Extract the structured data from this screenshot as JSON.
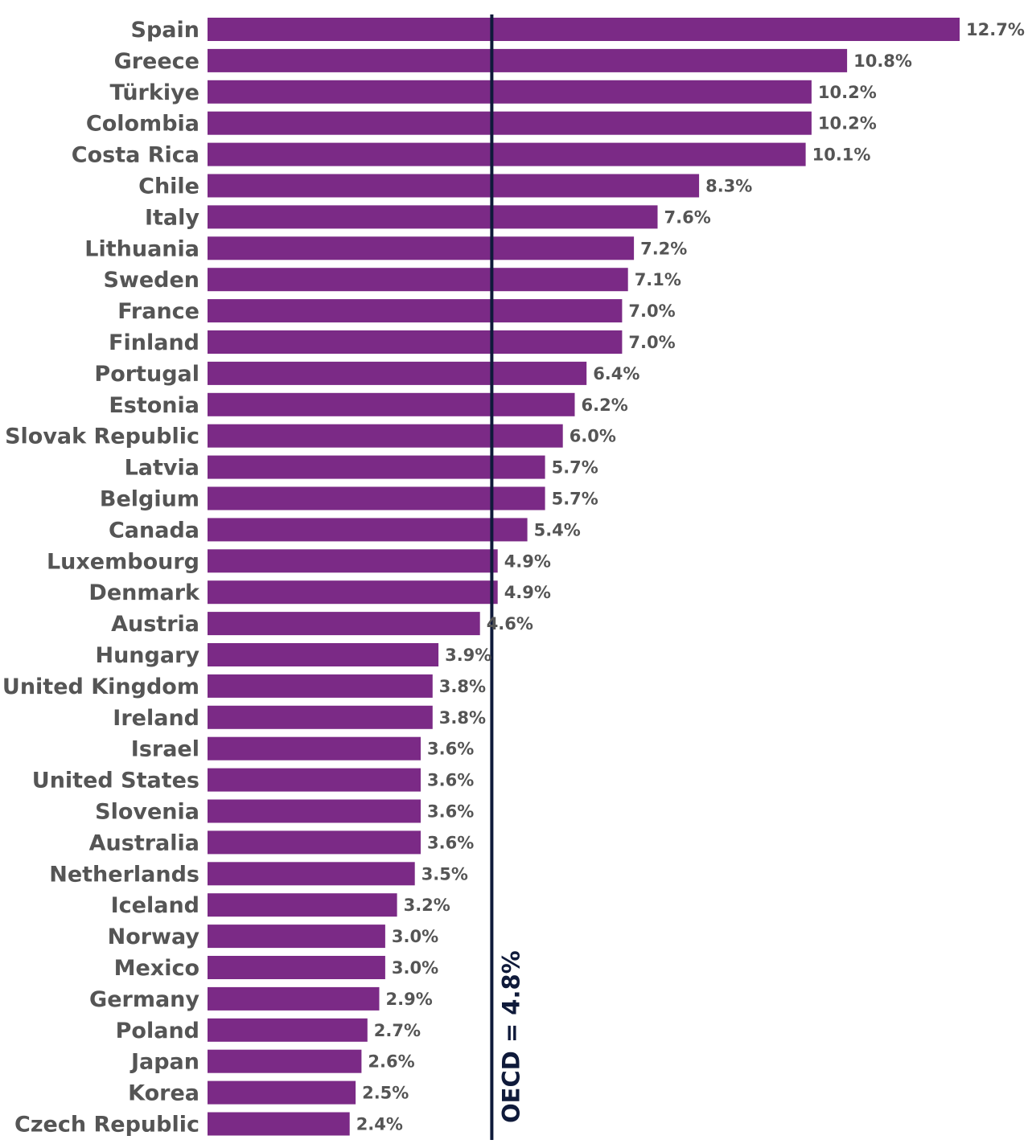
{
  "chart_data": {
    "type": "bar",
    "orientation": "horizontal",
    "categories": [
      "Spain",
      "Greece",
      "Türkiye",
      "Colombia",
      "Costa Rica",
      "Chile",
      "Italy",
      "Lithuania",
      "Sweden",
      "France",
      "Finland",
      "Portugal",
      "Estonia",
      "Slovak Republic",
      "Latvia",
      "Belgium",
      "Canada",
      "Luxembourg",
      "Denmark",
      "Austria",
      "Hungary",
      "United Kingdom",
      "Ireland",
      "Israel",
      "United States",
      "Slovenia",
      "Australia",
      "Netherlands",
      "Iceland",
      "Norway",
      "Mexico",
      "Germany",
      "Poland",
      "Japan",
      "Korea",
      "Czech Republic"
    ],
    "values": [
      12.7,
      10.8,
      10.2,
      10.2,
      10.1,
      8.3,
      7.6,
      7.2,
      7.1,
      7.0,
      7.0,
      6.4,
      6.2,
      6.0,
      5.7,
      5.7,
      5.4,
      4.9,
      4.9,
      4.6,
      3.9,
      3.8,
      3.8,
      3.6,
      3.6,
      3.6,
      3.6,
      3.5,
      3.2,
      3.0,
      3.0,
      2.9,
      2.7,
      2.6,
      2.5,
      2.4
    ],
    "value_labels": [
      "12.7%",
      "10.8%",
      "10.2%",
      "10.2%",
      "10.1%",
      "8.3%",
      "7.6%",
      "7.2%",
      "7.1%",
      "7.0%",
      "7.0%",
      "6.4%",
      "6.2%",
      "6.0%",
      "5.7%",
      "5.7%",
      "5.4%",
      "4.9%",
      "4.9%",
      "4.6%",
      "3.9%",
      "3.8%",
      "3.8%",
      "3.6%",
      "3.6%",
      "3.6%",
      "3.6%",
      "3.5%",
      "3.2%",
      "3.0%",
      "3.0%",
      "2.9%",
      "2.7%",
      "2.6%",
      "2.5%",
      "2.4%"
    ],
    "reference_line": {
      "value": 4.8,
      "label": "OECD = 4.8%",
      "color": "#0f1a3a"
    },
    "bar_color": "#7b2a86",
    "label_color": "#555555",
    "xlim": [
      0,
      13
    ],
    "grid": false,
    "title": "",
    "xlabel": "",
    "ylabel": ""
  }
}
